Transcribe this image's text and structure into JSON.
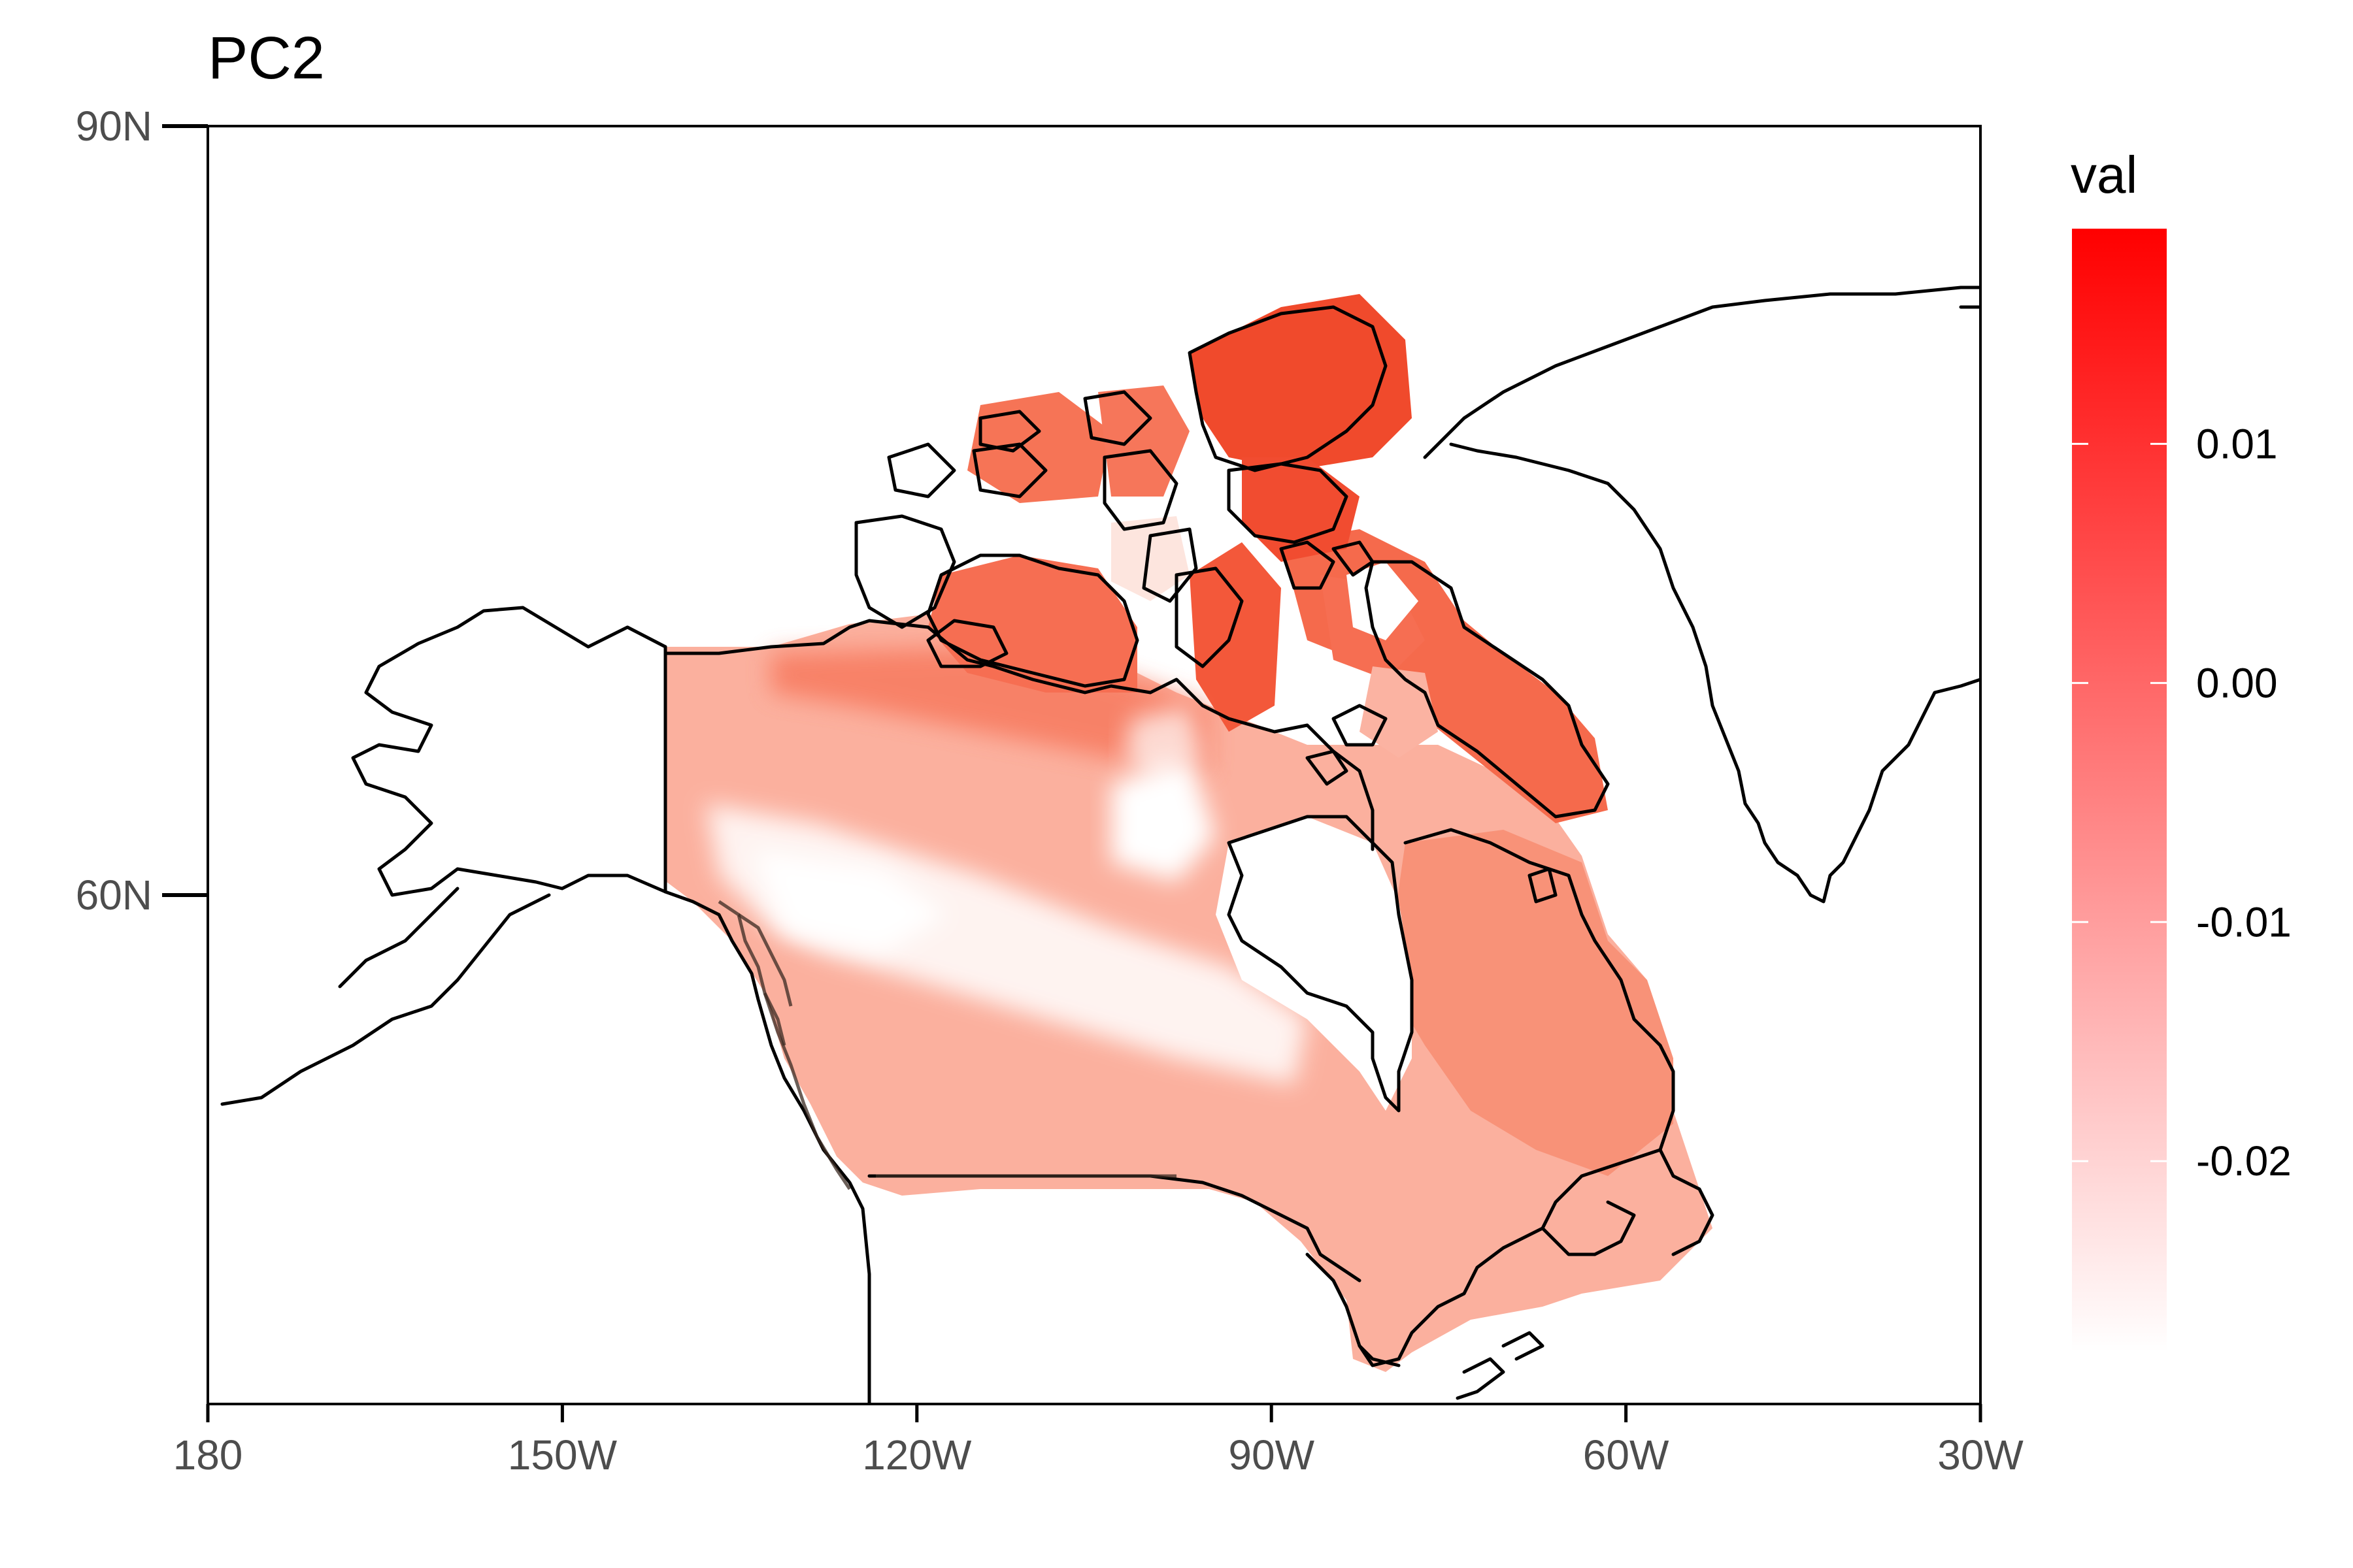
{
  "title": "PC2",
  "legend": {
    "title": "val",
    "ticks": [
      {
        "value": 0.01,
        "label": "0.01"
      },
      {
        "value": 0.0,
        "label": "0.00"
      },
      {
        "value": -0.01,
        "label": "-0.01"
      },
      {
        "value": -0.02,
        "label": "-0.02"
      }
    ],
    "min": -0.028,
    "max": 0.019,
    "color_low": "#ffffff",
    "color_high": "#ff0000"
  },
  "axes": {
    "x_ticks": [
      {
        "lon": -180,
        "label": "180"
      },
      {
        "lon": -150,
        "label": "150W"
      },
      {
        "lon": -120,
        "label": "120W"
      },
      {
        "lon": -90,
        "label": "90W"
      },
      {
        "lon": -60,
        "label": "60W"
      },
      {
        "lon": -30,
        "label": "30W"
      }
    ],
    "y_ticks": [
      {
        "lat": 90,
        "label": "90N"
      },
      {
        "lat": 60,
        "label": "60N"
      }
    ],
    "lon_range": [
      -180,
      -30
    ],
    "lat_range": [
      90,
      41
    ]
  },
  "colors": {
    "coastline": "#000000",
    "axis": "#000000",
    "tick_text": "#4d4d4d"
  }
}
